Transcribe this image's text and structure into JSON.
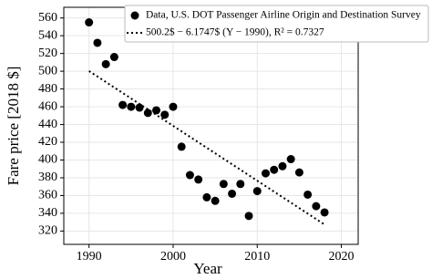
{
  "chart_data": {
    "type": "scatter",
    "xlabel": "Year",
    "ylabel": "Fare price [2018 $]",
    "xlim": [
      1987,
      2022
    ],
    "ylim": [
      305,
      572
    ],
    "xticks": [
      1990,
      2000,
      2010,
      2020
    ],
    "yticks": [
      320,
      340,
      360,
      380,
      400,
      420,
      440,
      460,
      480,
      500,
      520,
      540,
      560
    ],
    "grid": true,
    "legend": "upper right",
    "series": [
      {
        "name": "Data, U.S. DOT Passenger Airline Origin and Destination Survey",
        "color": "#000000",
        "style": "marker",
        "x": [
          1990,
          1991,
          1992,
          1993,
          1994,
          1995,
          1996,
          1997,
          1998,
          1999,
          2000,
          2001,
          2002,
          2003,
          2004,
          2005,
          2006,
          2007,
          2008,
          2009,
          2010,
          2011,
          2012,
          2013,
          2014,
          2015,
          2016,
          2017,
          2018
        ],
        "values": [
          555,
          532,
          508,
          516,
          462,
          460,
          459,
          453,
          456,
          451,
          460,
          415,
          383,
          378,
          358,
          354,
          373,
          362,
          373,
          337,
          365,
          385,
          389,
          393,
          401,
          386,
          361,
          348,
          341
        ]
      },
      {
        "name": "500.2$ − 6.1747$ (Y − 1990), R² = 0.7327",
        "color": "#000000",
        "style": "dotted",
        "x": [
          1990,
          2018
        ],
        "values": [
          500.2,
          327.3
        ]
      }
    ]
  }
}
